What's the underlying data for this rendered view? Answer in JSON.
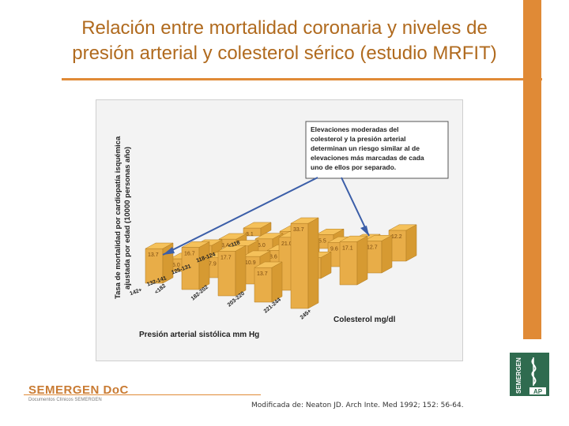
{
  "slide": {
    "title_line1": "Relación entre mortalidad coronaria y niveles de",
    "title_line2": "presión arterial y colesterol sérico (estudio MRFIT)",
    "source": "Modificada de: Neaton JD. Arch Inte. Med 1992; 152: 56-64.",
    "logo_main": "SEMERGEN DoC",
    "logo_sub": "Documentos Clínicos SEMERGEN",
    "badge_text": "SEMERGEN",
    "badge_ap": "AP",
    "accent_color": "#e08a36"
  },
  "chart_data": {
    "type": "bar",
    "subtype": "3d-bar",
    "ylabel_line1": "Tasa de mortalidad por cardiopatía isquémica",
    "ylabel_line2": "ajustada por edad  (10000 personas año)",
    "xlabel": "Presión arterial sistólica mm Hg",
    "zlabel": "Colesterol mg/dl",
    "bp_categories": [
      "142+",
      "132-141",
      "125-131",
      "118-124",
      "<118"
    ],
    "chol_categories": [
      "<182",
      "182-202",
      "203-220",
      "221-244",
      "245+"
    ],
    "values": [
      [
        13.7,
        16.7,
        17.7,
        13.7,
        33.7
      ],
      [
        5.0,
        7.9,
        10.9,
        21.0,
        null
      ],
      [
        5.6,
        7.9,
        8.6,
        8.3,
        17.1
      ],
      [
        3.4,
        6.0,
        6.3,
        9.6,
        12.7
      ],
      [
        3.1,
        4.3,
        5.5,
        5.9,
        12.2
      ]
    ],
    "annotation": "Elevaciones moderadas del colesterol y la presión arterial determinan un riesgo similar al de elevaciones más marcadas de cada uno de ellos por separado.",
    "bar_color": "#f5c15a",
    "label_color": "#7a4a10"
  }
}
